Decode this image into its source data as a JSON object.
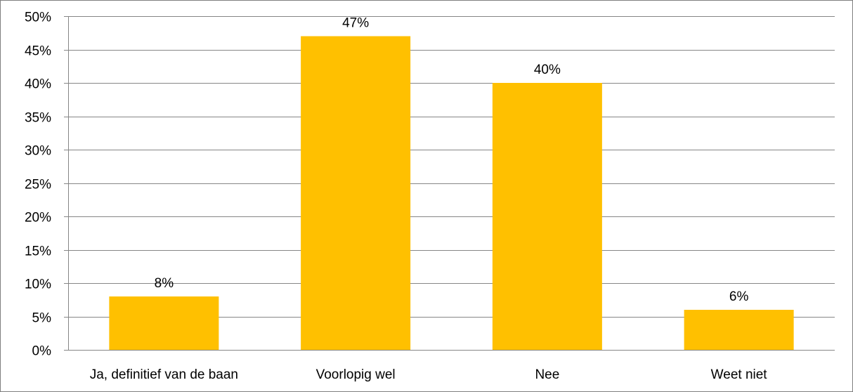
{
  "chart_data": {
    "type": "bar",
    "title": "",
    "xlabel": "",
    "ylabel": "",
    "categories": [
      "Ja, definitief van de baan",
      "Voorlopig wel",
      "Nee",
      "Weet niet"
    ],
    "values": [
      8,
      47,
      40,
      6
    ],
    "data_labels": [
      "8%",
      "47%",
      "40%",
      "6%"
    ],
    "ylim": [
      0,
      50
    ],
    "yticks": [
      0,
      5,
      10,
      15,
      20,
      25,
      30,
      35,
      40,
      45,
      50
    ],
    "ytick_labels": [
      "0%",
      "5%",
      "10%",
      "15%",
      "20%",
      "25%",
      "30%",
      "35%",
      "40%",
      "45%",
      "50%"
    ],
    "grid": true,
    "legend": "none",
    "colors": {
      "bar": "#FFC000",
      "grid": "#868686",
      "axis": "#868686"
    }
  }
}
